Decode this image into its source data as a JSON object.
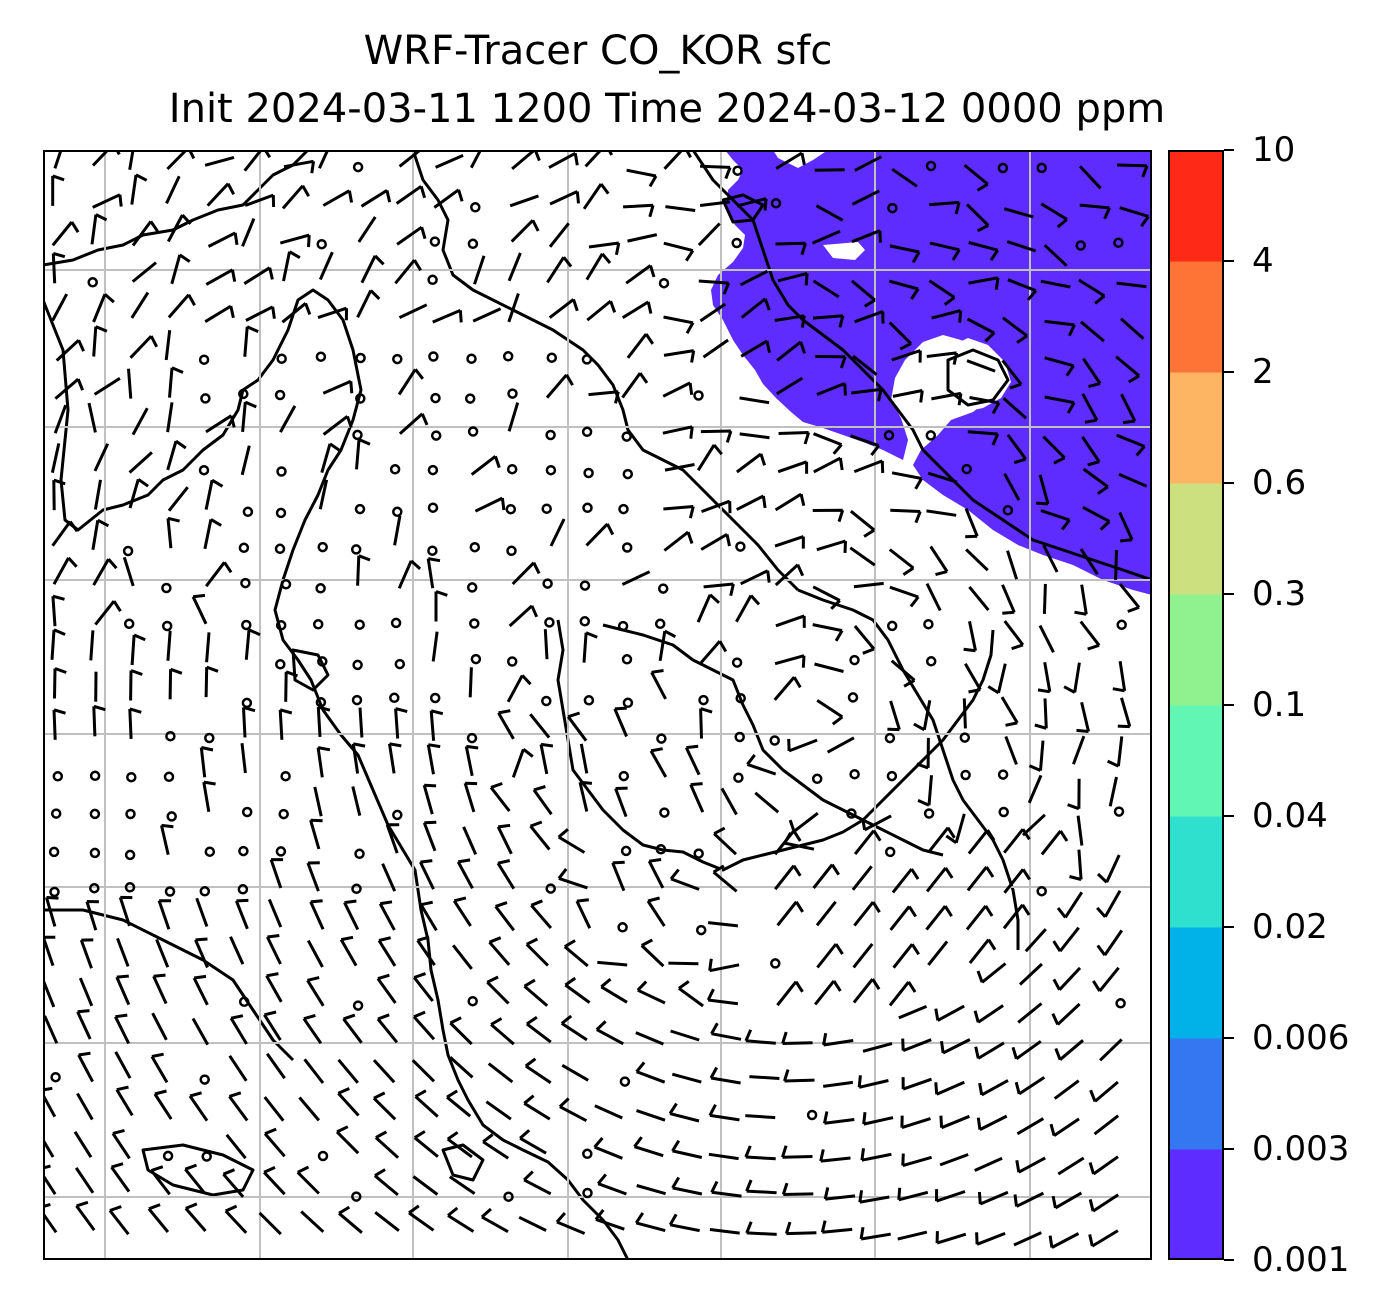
{
  "title": {
    "line1": "WRF-Tracer CO_KOR sfc",
    "line2": "Init 2024-03-11 1200 Time 2024-03-12 0000 ppm"
  },
  "colorbar": {
    "levels": [
      "0.001",
      "0.003",
      "0.006",
      "0.02",
      "0.04",
      "0.1",
      "0.3",
      "0.6",
      "2",
      "4",
      "10"
    ],
    "colors": [
      "#5e2cff",
      "#3577f0",
      "#01b2e8",
      "#2fe0cf",
      "#62f6b4",
      "#90f28e",
      "#cce07f",
      "#fdb463",
      "#fe7336",
      "#fe2a17"
    ]
  },
  "map": {
    "tracer_fill_color": "#5e2cff",
    "grid_color": "#c0c0c0",
    "coastline_color": "#000000",
    "vector_color": "#000000"
  }
}
